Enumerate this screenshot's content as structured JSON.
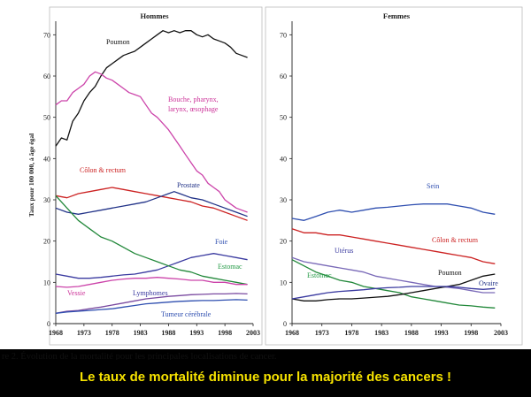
{
  "caption": "re 2. Évolution de la mortalité pour les principales localisations de cancer.",
  "subtitle": "Le taux de mortalité diminue pour la majorité des cancers !",
  "chart_data": [
    {
      "type": "line",
      "title": "Hommes",
      "ylabel": "Taux pour 100 000, à âge égal",
      "xlabel": "",
      "xlim": [
        1968,
        2003
      ],
      "ylim": [
        0,
        72
      ],
      "xticks": [
        1968,
        1973,
        1978,
        1983,
        1988,
        1993,
        1998,
        2003
      ],
      "yticks": [
        0,
        10,
        20,
        30,
        40,
        50,
        60,
        70
      ],
      "grid": false,
      "series": [
        {
          "name": "Poumon",
          "color": "#111111",
          "labelColor": "#111111",
          "x": [
            1968,
            1969,
            1970,
            1971,
            1972,
            1973,
            1974,
            1975,
            1976,
            1977,
            1978,
            1979,
            1980,
            1981,
            1982,
            1983,
            1984,
            1985,
            1986,
            1987,
            1988,
            1989,
            1990,
            1991,
            1992,
            1993,
            1994,
            1995,
            1996,
            1997,
            1998,
            1999,
            2000,
            2001,
            2002
          ],
          "y": [
            43,
            45,
            44.5,
            49,
            51,
            54,
            56,
            57.5,
            60,
            62,
            63,
            64,
            65,
            65.5,
            66,
            67,
            68,
            69,
            70,
            71,
            70.5,
            71,
            70.5,
            71,
            71,
            70,
            69.5,
            70,
            69,
            68.5,
            68,
            67,
            65.5,
            65,
            64.5
          ]
        },
        {
          "name": "Bouche, pharynx, larynx, œsophage",
          "color": "#cc44aa",
          "labelColor": "#cc3399",
          "x": [
            1968,
            1969,
            1970,
            1971,
            1972,
            1973,
            1974,
            1975,
            1976,
            1977,
            1978,
            1979,
            1980,
            1981,
            1982,
            1983,
            1984,
            1985,
            1986,
            1987,
            1988,
            1989,
            1990,
            1991,
            1992,
            1993,
            1994,
            1995,
            1996,
            1997,
            1998,
            1999,
            2000,
            2001,
            2002
          ],
          "y": [
            53,
            54,
            54,
            56,
            57,
            58,
            60,
            61,
            60.5,
            59.5,
            59,
            58,
            57,
            56,
            55.5,
            55,
            53,
            51,
            50,
            48.5,
            47,
            45,
            43,
            41,
            39,
            37,
            36,
            34,
            33,
            32,
            30,
            29,
            28,
            27.5,
            27
          ]
        },
        {
          "name": "Côlon & rectum",
          "color": "#cc2222",
          "labelColor": "#cc2222",
          "x": [
            1968,
            1970,
            1972,
            1974,
            1976,
            1978,
            1980,
            1982,
            1984,
            1986,
            1988,
            1990,
            1992,
            1994,
            1996,
            1998,
            2000,
            2002
          ],
          "y": [
            31,
            30.5,
            31.5,
            32,
            32.5,
            33,
            32.5,
            32,
            31.5,
            31,
            30.5,
            30,
            29.5,
            28.5,
            28,
            27,
            26,
            25
          ]
        },
        {
          "name": "Prostate",
          "color": "#223388",
          "labelColor": "#223388",
          "x": [
            1968,
            1970,
            1972,
            1974,
            1976,
            1978,
            1980,
            1982,
            1984,
            1986,
            1988,
            1989,
            1990,
            1992,
            1994,
            1996,
            1998,
            2000,
            2002
          ],
          "y": [
            28,
            27,
            26.5,
            27,
            27.5,
            28,
            28.5,
            29,
            29.5,
            30.5,
            31.5,
            32,
            31.5,
            30.5,
            30,
            29,
            28,
            27,
            26
          ]
        },
        {
          "name": "Foie",
          "color": "#3a3aa0",
          "labelColor": "#2f4fb0",
          "x": [
            1968,
            1970,
            1972,
            1974,
            1976,
            1978,
            1980,
            1982,
            1984,
            1986,
            1988,
            1990,
            1992,
            1994,
            1996,
            1998,
            2000,
            2002
          ],
          "y": [
            12,
            11.5,
            11,
            11,
            11.2,
            11.5,
            11.8,
            12,
            12.5,
            13,
            14,
            15,
            16,
            16.5,
            17,
            16.5,
            16,
            15.5
          ]
        },
        {
          "name": "Estomac",
          "color": "#22883a",
          "labelColor": "#229944",
          "x": [
            1968,
            1970,
            1972,
            1974,
            1976,
            1978,
            1980,
            1982,
            1984,
            1986,
            1988,
            1990,
            1992,
            1994,
            1996,
            1998,
            2000,
            2002
          ],
          "y": [
            31,
            28,
            25,
            23,
            21,
            20,
            18.5,
            17,
            16,
            15,
            14,
            13,
            12.5,
            11.5,
            11,
            10.5,
            10,
            9.5
          ]
        },
        {
          "name": "Vessie",
          "color": "#cc44aa",
          "labelColor": "#cc3399",
          "x": [
            1968,
            1970,
            1972,
            1974,
            1976,
            1978,
            1980,
            1982,
            1984,
            1986,
            1988,
            1990,
            1992,
            1994,
            1996,
            1998,
            2000,
            2002
          ],
          "y": [
            9,
            8.8,
            9,
            9.5,
            10,
            10.5,
            10.8,
            11,
            11,
            11.2,
            11,
            10.8,
            10.5,
            10.5,
            10,
            10,
            9.5,
            9.5
          ]
        },
        {
          "name": "Lymphomes",
          "color": "#7a4aa0",
          "labelColor": "#3a3aa0",
          "x": [
            1968,
            1970,
            1972,
            1974,
            1976,
            1978,
            1980,
            1982,
            1984,
            1986,
            1988,
            1990,
            1992,
            1994,
            1996,
            1998,
            2000,
            2002
          ],
          "y": [
            2.5,
            3,
            3.2,
            3.6,
            4,
            4.5,
            5,
            5.5,
            6,
            6.3,
            6.6,
            6.8,
            7,
            7.1,
            7.2,
            7.2,
            7.3,
            7.2
          ]
        },
        {
          "name": "Tumeur cérébrale",
          "color": "#2f4fb0",
          "labelColor": "#2f4fb0",
          "x": [
            1968,
            1970,
            1972,
            1974,
            1976,
            1978,
            1980,
            1982,
            1984,
            1986,
            1988,
            1990,
            1992,
            1994,
            1996,
            1998,
            2000,
            2002
          ],
          "y": [
            2.5,
            2.8,
            3,
            3.2,
            3.4,
            3.6,
            4,
            4.4,
            4.8,
            5,
            5.2,
            5.4,
            5.5,
            5.6,
            5.6,
            5.7,
            5.8,
            5.7
          ]
        }
      ]
    },
    {
      "type": "line",
      "title": "Femmes",
      "ylabel": "",
      "xlabel": "",
      "xlim": [
        1968,
        2003
      ],
      "ylim": [
        0,
        72
      ],
      "xticks": [
        1968,
        1973,
        1978,
        1983,
        1988,
        1993,
        1998,
        2003
      ],
      "yticks": [
        0,
        10,
        20,
        30,
        40,
        50,
        60,
        70
      ],
      "grid": false,
      "series": [
        {
          "name": "Sein",
          "color": "#2f4fb0",
          "labelColor": "#2f4fb0",
          "x": [
            1968,
            1970,
            1972,
            1974,
            1976,
            1978,
            1980,
            1982,
            1984,
            1986,
            1988,
            1990,
            1992,
            1994,
            1996,
            1998,
            2000,
            2002
          ],
          "y": [
            25.5,
            25,
            26,
            27,
            27.5,
            27,
            27.5,
            28,
            28.2,
            28.5,
            28.8,
            29,
            29,
            29,
            28.5,
            28,
            27,
            26.5
          ]
        },
        {
          "name": "Côlon & rectum",
          "color": "#cc2222",
          "labelColor": "#cc2222",
          "x": [
            1968,
            1970,
            1972,
            1974,
            1976,
            1978,
            1980,
            1982,
            1984,
            1986,
            1988,
            1990,
            1992,
            1994,
            1996,
            1998,
            2000,
            2002
          ],
          "y": [
            23,
            22,
            22,
            21.5,
            21.5,
            21,
            20.5,
            20,
            19.5,
            19,
            18.5,
            18,
            17.5,
            17,
            16.5,
            16,
            15,
            14.5
          ]
        },
        {
          "name": "Utérus",
          "color": "#7a6ab8",
          "labelColor": "#3a3aa0",
          "x": [
            1968,
            1970,
            1972,
            1974,
            1976,
            1978,
            1980,
            1982,
            1984,
            1986,
            1988,
            1990,
            1992,
            1994,
            1996,
            1998,
            2000,
            2002
          ],
          "y": [
            16,
            15,
            14.5,
            14,
            13.5,
            13,
            12.5,
            11.5,
            11,
            10.5,
            10,
            9.5,
            9,
            8.8,
            8.5,
            8,
            7.5,
            7.5
          ]
        },
        {
          "name": "Estomac",
          "color": "#22883a",
          "labelColor": "#229944",
          "x": [
            1968,
            1970,
            1972,
            1974,
            1976,
            1978,
            1980,
            1982,
            1984,
            1986,
            1988,
            1990,
            1992,
            1994,
            1996,
            1998,
            2000,
            2002
          ],
          "y": [
            15.5,
            14,
            12.5,
            11.5,
            10.5,
            10,
            9,
            8.5,
            8,
            7.5,
            6.5,
            6,
            5.5,
            5,
            4.5,
            4.3,
            4,
            3.8
          ]
        },
        {
          "name": "Poumon",
          "color": "#111111",
          "labelColor": "#111111",
          "x": [
            1968,
            1970,
            1972,
            1974,
            1976,
            1978,
            1980,
            1982,
            1984,
            1986,
            1988,
            1990,
            1992,
            1994,
            1996,
            1998,
            2000,
            2002
          ],
          "y": [
            6,
            5.5,
            5.5,
            5.8,
            6,
            6,
            6.2,
            6.4,
            6.6,
            7,
            7.5,
            8,
            8.5,
            9,
            9.5,
            10.5,
            11.5,
            12
          ]
        },
        {
          "name": "Ovaire",
          "color": "#3a3aa0",
          "labelColor": "#223388",
          "x": [
            1968,
            1970,
            1972,
            1974,
            1976,
            1978,
            1980,
            1982,
            1984,
            1986,
            1988,
            1990,
            1992,
            1994,
            1996,
            1998,
            2000,
            2002
          ],
          "y": [
            6,
            6.5,
            7,
            7.5,
            7.8,
            8,
            8.2,
            8.5,
            8.7,
            8.8,
            9,
            9,
            9,
            9,
            8.8,
            8.5,
            8.3,
            8.5
          ]
        }
      ]
    }
  ]
}
